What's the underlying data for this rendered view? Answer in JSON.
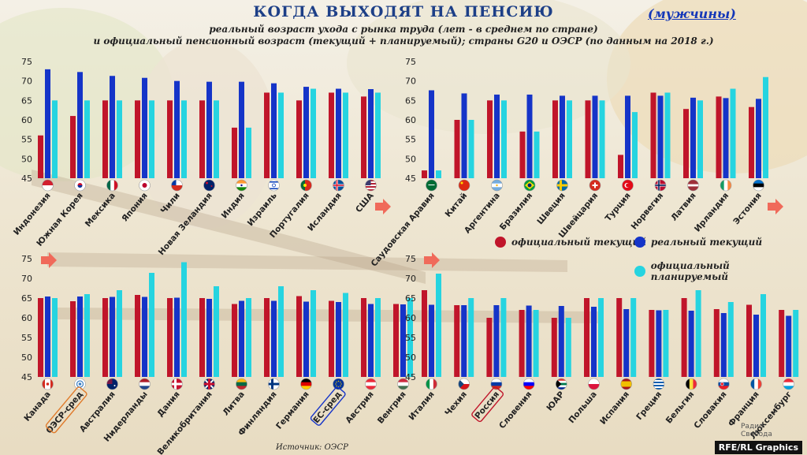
{
  "header": {
    "title": "КОГДА ВЫХОДЯТ НА ПЕНСИЮ",
    "gender": "(мужчины)",
    "subtitle_line1": "реальный возраст ухода с рынка труда (лет - в среднем по стране)",
    "subtitle_line2": "и официальный пенсионный возраст (текущий + планируемый); страны G20 и ОЭСР (по данным на 2018 г.)"
  },
  "legend": {
    "official_current": "официальный текущий",
    "real_current": "реальный текущий",
    "official_planned": "официальный планируемый"
  },
  "source": "Источник: ОЭСР",
  "credit": "RFE/RL Graphics",
  "logo": [
    "Радио",
    "Свобода"
  ],
  "colors": {
    "official_current": "#c0152a",
    "real_current": "#1534c8",
    "official_planned": "#26d4e0",
    "title": "#1d3f87",
    "arrow": "#f06a5a"
  },
  "chart_data": [
    {
      "type": "bar",
      "title": "",
      "ylim": [
        45,
        75
      ],
      "yticks": [
        45,
        50,
        55,
        60,
        65,
        70,
        75
      ],
      "categories": [
        "Индонезия",
        "Южная Корея",
        "Мексика",
        "Япония",
        "Чили",
        "Новая Зеландия",
        "Индия",
        "Израиль",
        "Португалия",
        "Исландия",
        "США"
      ],
      "flags": [
        "indonesia",
        "south-korea",
        "mexico",
        "japan",
        "chile",
        "new-zealand",
        "india",
        "israel",
        "portugal",
        "iceland",
        "usa"
      ],
      "series": [
        {
          "name": "официальный текущий",
          "values": [
            56,
            61,
            65,
            65,
            65,
            65,
            58,
            67,
            65,
            67,
            66
          ]
        },
        {
          "name": "реальный текущий",
          "values": [
            73,
            72.3,
            71.3,
            70.8,
            70,
            69.8,
            69.8,
            69.4,
            68.5,
            68,
            67.9
          ]
        },
        {
          "name": "официальный планируемый",
          "values": [
            65,
            65,
            65,
            65,
            65,
            65,
            58,
            67,
            68,
            67,
            67
          ]
        }
      ]
    },
    {
      "type": "bar",
      "title": "",
      "ylim": [
        45,
        75
      ],
      "yticks": [
        45,
        50,
        55,
        60,
        65,
        70,
        75
      ],
      "categories": [
        "Саудовская Аравия",
        "Китай",
        "Аргентина",
        "Бразилия",
        "Швеция",
        "Швейцария",
        "Турция",
        "Норвегия",
        "Латвия",
        "Ирландия",
        "Эстония"
      ],
      "flags": [
        "saudi-arabia",
        "china",
        "argentina",
        "brazil",
        "sweden",
        "switzerland",
        "turkey",
        "norway",
        "latvia",
        "ireland",
        "estonia"
      ],
      "series": [
        {
          "name": "официальный текущий",
          "values": [
            47,
            60,
            65,
            57,
            65,
            65,
            51,
            67,
            62.8,
            66,
            63.3
          ]
        },
        {
          "name": "реальный текущий",
          "values": [
            67.6,
            66.8,
            66.5,
            66.5,
            66.2,
            66.2,
            66.2,
            66.2,
            65.7,
            65.6,
            65.4
          ]
        },
        {
          "name": "официальный планируемый",
          "values": [
            47,
            60,
            65,
            57,
            65,
            65,
            62,
            67,
            65,
            68,
            71
          ]
        }
      ]
    },
    {
      "type": "bar",
      "title": "",
      "ylim": [
        45,
        75
      ],
      "yticks": [
        45,
        50,
        55,
        60,
        65,
        70,
        75
      ],
      "categories": [
        "Канада",
        "ОЭСР-сред",
        "Австралия",
        "Нидерланды",
        "Дания",
        "Великобритания",
        "Литва",
        "Финляндия",
        "Германия",
        "ЕС-сред",
        "Австрия",
        "Венгрия"
      ],
      "flags": [
        "canada",
        "oecd",
        "australia",
        "netherlands",
        "denmark",
        "uk",
        "lithuania",
        "finland",
        "germany",
        "eu",
        "austria",
        "hungary"
      ],
      "highlight": {
        "ОЭСР-сред": "#e07a2a",
        "ЕС-сред": "#1534c8"
      },
      "series": [
        {
          "name": "официальный текущий",
          "values": [
            65,
            64.2,
            65,
            65.8,
            65,
            65,
            63.5,
            65,
            65.5,
            64.3,
            65,
            63.5
          ]
        },
        {
          "name": "реальный текущий",
          "values": [
            65.4,
            65.4,
            65.3,
            65.3,
            65.1,
            64.8,
            64.3,
            64.3,
            64.1,
            64,
            63.5,
            63.4
          ]
        },
        {
          "name": "официальный планируемый",
          "values": [
            65,
            66,
            67,
            71.4,
            74.1,
            68,
            65,
            68,
            67,
            66.3,
            65,
            65
          ]
        }
      ]
    },
    {
      "type": "bar",
      "title": "",
      "ylim": [
        45,
        75
      ],
      "yticks": [
        45,
        50,
        55,
        60,
        65,
        70,
        75
      ],
      "categories": [
        "Италия",
        "Чехия",
        "Россия",
        "Словения",
        "ЮАР",
        "Польша",
        "Испания",
        "Греция",
        "Бельгия",
        "Словакия",
        "Франция",
        "Люксембург"
      ],
      "flags": [
        "italy",
        "czechia",
        "russia",
        "slovenia",
        "south-africa",
        "poland",
        "spain",
        "greece",
        "belgium",
        "slovakia",
        "france",
        "luxembourg"
      ],
      "highlight": {
        "Россия": "#c0152a"
      },
      "series": [
        {
          "name": "официальный текущий",
          "values": [
            67,
            63.2,
            60,
            62,
            60,
            65,
            65,
            62,
            65,
            62.2,
            63.3,
            62
          ]
        },
        {
          "name": "реальный текущий",
          "values": [
            63.3,
            63.2,
            63.2,
            63.1,
            63,
            62.8,
            62.2,
            61.9,
            61.8,
            61.2,
            60.8,
            60.5
          ]
        },
        {
          "name": "официальный планируемый",
          "values": [
            71.2,
            65,
            65,
            62,
            60,
            65,
            65,
            62,
            67,
            64,
            66,
            62
          ]
        }
      ]
    }
  ]
}
